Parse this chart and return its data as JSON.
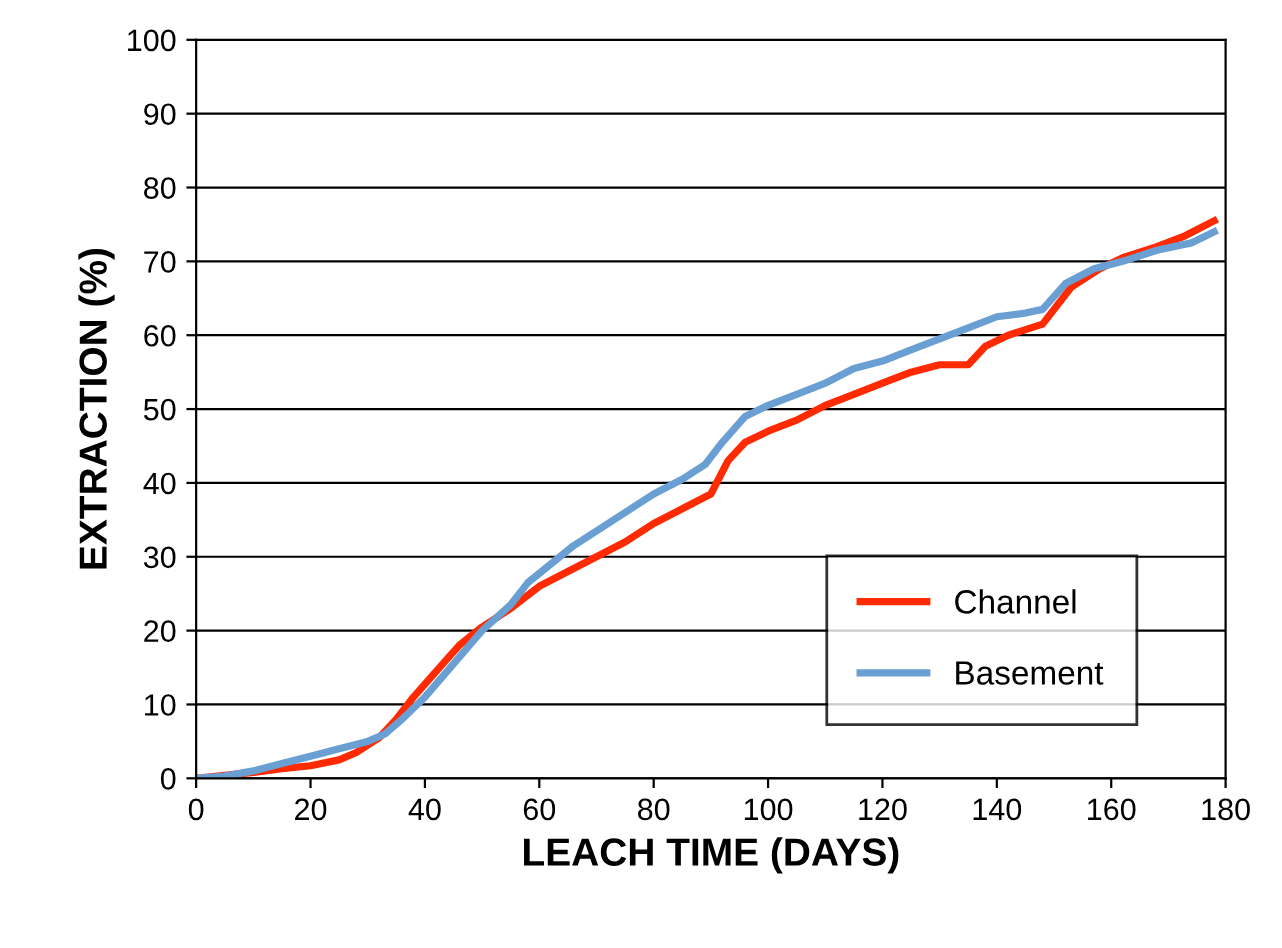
{
  "chart_data": {
    "type": "line",
    "xlabel": "LEACH TIME (DAYS)",
    "ylabel": "EXTRACTION (%)",
    "xlim": [
      0,
      180
    ],
    "xticks": [
      0,
      20,
      40,
      60,
      80,
      100,
      120,
      140,
      160,
      180
    ],
    "ylim": [
      0,
      100
    ],
    "yticks": [
      0,
      10,
      20,
      30,
      40,
      50,
      60,
      70,
      80,
      90,
      100
    ],
    "grid": "y",
    "legend": "bottom right",
    "marker": "none",
    "line_style": "solid",
    "series": [
      {
        "name": "Channel",
        "color": "#ff2a00",
        "x": [
          0,
          10,
          15,
          20,
          25,
          28,
          32,
          35,
          38,
          42,
          46,
          50,
          55,
          60,
          65,
          70,
          75,
          80,
          85,
          90,
          93,
          96,
          100,
          105,
          110,
          115,
          120,
          125,
          130,
          135,
          138,
          142,
          148,
          153,
          158,
          162,
          168,
          173,
          178
        ],
        "values": [
          0,
          0.8,
          1.3,
          1.7,
          2.5,
          3.5,
          5.5,
          8,
          11,
          14.5,
          18,
          20.5,
          23,
          26,
          28,
          30,
          32,
          34.5,
          36.5,
          38.5,
          43,
          45.5,
          47,
          48.5,
          50.5,
          52,
          53.5,
          55,
          56,
          56,
          58.5,
          60,
          61.5,
          66.5,
          69,
          70.5,
          72,
          73.5,
          75.5
        ]
      },
      {
        "name": "Basement",
        "color": "#6a9fd4",
        "x": [
          0,
          5,
          10,
          15,
          20,
          25,
          30,
          33,
          36,
          40,
          45,
          50,
          55,
          58,
          62,
          66,
          70,
          75,
          80,
          85,
          89,
          92,
          96,
          100,
          105,
          110,
          115,
          120,
          125,
          130,
          135,
          140,
          145,
          148,
          152,
          157,
          162,
          168,
          174,
          178
        ],
        "values": [
          0,
          0.3,
          1,
          2,
          3,
          4,
          5,
          6,
          8,
          11,
          15.5,
          20,
          23.5,
          26.5,
          29,
          31.5,
          33.5,
          36,
          38.5,
          40.5,
          42.5,
          45.5,
          49,
          50.5,
          52,
          53.5,
          55.5,
          56.5,
          58,
          59.5,
          61,
          62.5,
          63,
          63.5,
          67,
          69,
          70,
          71.5,
          72.5,
          74
        ]
      }
    ]
  }
}
